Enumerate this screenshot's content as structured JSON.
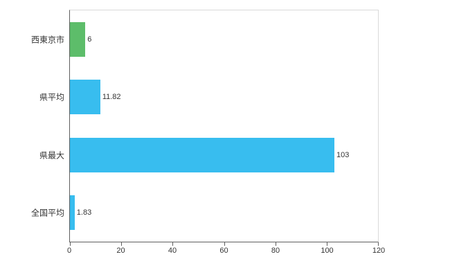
{
  "chart_data": {
    "type": "bar",
    "orientation": "horizontal",
    "title": "",
    "xlabel": "",
    "ylabel": "",
    "categories": [
      "西東京市",
      "県平均",
      "県最大",
      "全国平均"
    ],
    "values": [
      6,
      11.82,
      103,
      1.83
    ],
    "value_labels": [
      "6",
      "11.82",
      "103",
      "1.83"
    ],
    "bar_colors": [
      "#5dbd6a",
      "#38bdef",
      "#38bdef",
      "#38bdef"
    ],
    "xlim": [
      0,
      120
    ],
    "x_ticks": [
      0,
      20,
      40,
      60,
      80,
      100,
      120
    ],
    "grid": false,
    "legend": "none",
    "colors": {
      "background": "#ffffff",
      "axis_line": "#5f5f5f",
      "plot_border": "#d9d9d9",
      "text": "#333333",
      "bar_green": "#5dbd6a",
      "bar_blue": "#38bdef"
    }
  }
}
